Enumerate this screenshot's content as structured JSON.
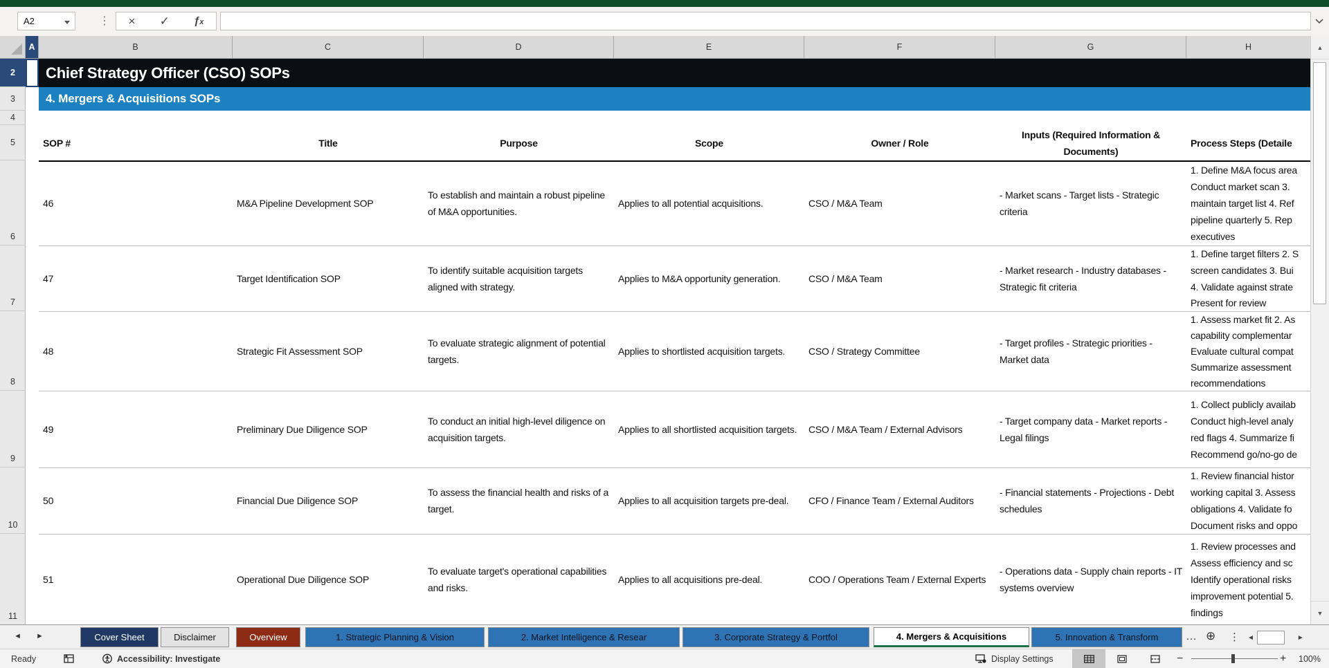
{
  "app": {
    "name_box": "A2",
    "formula_value": ""
  },
  "grid": {
    "columns": [
      "A",
      "B",
      "C",
      "D",
      "E",
      "F",
      "G",
      "H"
    ],
    "rows": [
      "2",
      "3",
      "4",
      "5",
      "6",
      "7",
      "8",
      "9",
      "10",
      "11"
    ]
  },
  "sheet": {
    "title": "Chief Strategy Officer (CSO) SOPs",
    "section": "4. Mergers & Acquisitions SOPs",
    "table": {
      "headers": {
        "sop": "SOP #",
        "title": "Title",
        "purpose": "Purpose",
        "scope": "Scope",
        "owner": "Owner / Role",
        "inputs": "Inputs (Required Information & Documents)",
        "process": "Process Steps (Detaile"
      },
      "rows": [
        {
          "sop": "46",
          "title": "M&A Pipeline Development SOP",
          "purpose": "To establish and maintain a robust pipeline of M&A opportunities.",
          "scope": "Applies to all potential acquisitions.",
          "owner": "CSO / M&A Team",
          "inputs": "- Market scans - Target lists - Strategic criteria",
          "process_lines": [
            "1. Define M&A focus area",
            "Conduct market scan 3.",
            "maintain target list 4. Ref",
            "pipeline quarterly 5. Rep",
            "executives"
          ]
        },
        {
          "sop": "47",
          "title": "Target Identification SOP",
          "purpose": "To identify suitable acquisition targets aligned with strategy.",
          "scope": "Applies to M&A opportunity generation.",
          "owner": "CSO / M&A Team",
          "inputs": "- Market research - Industry databases - Strategic fit criteria",
          "process_lines": [
            "1. Define target filters 2. S",
            "screen candidates 3. Bui",
            "4. Validate against strate",
            "Present for review"
          ]
        },
        {
          "sop": "48",
          "title": "Strategic Fit Assessment SOP",
          "purpose": "To evaluate strategic alignment of potential targets.",
          "scope": "Applies to shortlisted acquisition targets.",
          "owner": "CSO / Strategy Committee",
          "inputs": "- Target profiles - Strategic priorities - Market data",
          "process_lines": [
            "1. Assess market fit 2. As",
            "capability complementar",
            "Evaluate cultural compat",
            "Summarize assessment",
            "recommendations"
          ]
        },
        {
          "sop": "49",
          "title": "Preliminary Due Diligence SOP",
          "purpose": "To conduct an initial high-level diligence on acquisition targets.",
          "scope": "Applies to all shortlisted acquisition targets.",
          "owner": "CSO / M&A Team / External Advisors",
          "inputs": "- Target company data - Market reports - Legal filings",
          "process_lines": [
            "1. Collect publicly availab",
            "Conduct high-level analy",
            "red flags 4. Summarize fi",
            "Recommend go/no-go de"
          ]
        },
        {
          "sop": "50",
          "title": "Financial Due Diligence SOP",
          "purpose": "To assess the financial health and risks of a target.",
          "scope": "Applies to all acquisition targets pre-deal.",
          "owner": "CFO / Finance Team / External Auditors",
          "inputs": "- Financial statements - Projections - Debt schedules",
          "process_lines": [
            "1. Review financial histor",
            "working capital 3. Assess",
            "obligations 4. Validate fo",
            "Document risks and oppo"
          ]
        },
        {
          "sop": "51",
          "title": "Operational Due Diligence SOP",
          "purpose": "To evaluate target's operational capabilities and risks.",
          "scope": "Applies to all acquisitions pre-deal.",
          "owner": "COO / Operations Team / External Experts",
          "inputs": "- Operations data - Supply chain reports - IT systems overview",
          "process_lines": [
            "1. Review processes and",
            "Assess efficiency and sc",
            "Identify operational risks",
            "improvement potential 5.",
            "findings"
          ]
        }
      ]
    }
  },
  "tabs": {
    "items": [
      {
        "label": "Cover Sheet",
        "style": "navy"
      },
      {
        "label": "Disclaimer",
        "style": "plain"
      },
      {
        "label": "Overview",
        "style": "red"
      },
      {
        "label": "1. Strategic Planning & Vision",
        "style": "blue"
      },
      {
        "label": "2. Market Intelligence & Resear",
        "style": "blue"
      },
      {
        "label": "3. Corporate Strategy & Portfol",
        "style": "blue"
      },
      {
        "label": "4. Mergers & Acquisitions",
        "style": "active"
      },
      {
        "label": "5. Innovation & Transform",
        "style": "blue"
      }
    ],
    "overflow": "…",
    "add": "⊕",
    "menu": "⋮"
  },
  "status": {
    "mode": "Ready",
    "accessibility": "Accessibility: Investigate",
    "display_settings": "Display Settings",
    "zoom_level": "100%"
  },
  "colors": {
    "excel_green": "#0f4c2a",
    "title_banner": "#0b0e12",
    "section_banner": "#1b81c0",
    "header_select": "#2b4a7c",
    "tab_navy": "#1f3864",
    "tab_red": "#8e2b15",
    "tab_blue": "#2e74b5",
    "active_underline": "#1e7145"
  }
}
